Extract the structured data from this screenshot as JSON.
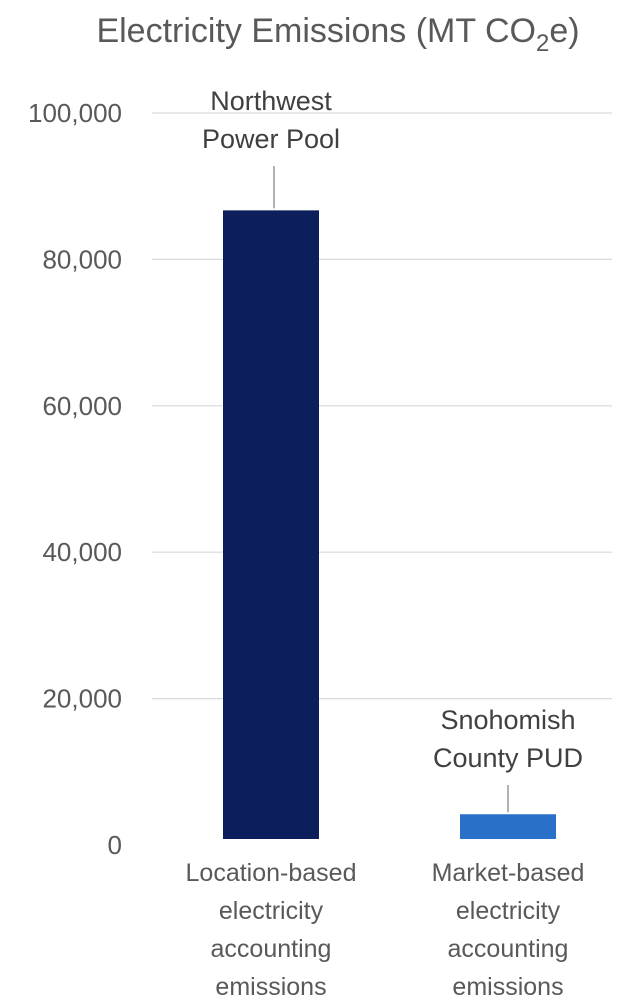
{
  "chart_data": {
    "type": "bar",
    "title": "Electricity Emissions (MT CO",
    "title_subscript": "2",
    "title_suffix": "e)",
    "xlabel": "",
    "ylabel": "",
    "ylim": [
      0,
      100000
    ],
    "y_ticks": [
      0,
      20000,
      40000,
      60000,
      80000,
      100000
    ],
    "y_tick_labels": [
      "0",
      "20,000",
      "40,000",
      "60,000",
      "80,000",
      "100,000"
    ],
    "grid": true,
    "legend": "none",
    "categories": [
      [
        "Location-based",
        "electricity",
        "accounting",
        "emissions"
      ],
      [
        "Market-based",
        "electricity",
        "accounting",
        "emissions"
      ]
    ],
    "values": [
      86700,
      4200
    ],
    "colors": [
      "#0c1f5c",
      "#2870c8"
    ],
    "annotations": [
      [
        "Northwest",
        "Power Pool"
      ],
      [
        "Snohomish",
        "County PUD"
      ]
    ]
  }
}
